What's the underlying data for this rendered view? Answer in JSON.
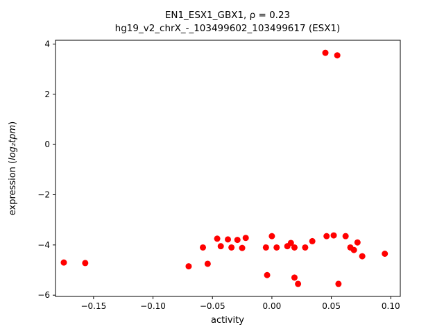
{
  "figure": {
    "background": "#ffffff",
    "axis_color": "#000000"
  },
  "chart_data": {
    "type": "scatter",
    "title": "EN1_ESX1_GBX1, ρ = 0.23",
    "subtitle": "hg19_v2_chrX_-_103499602_103499617 (ESX1)",
    "xlabel": "activity",
    "ylabel_parts": [
      "expression (",
      "log₂tpm",
      ")"
    ],
    "rho": 0.23,
    "marker_color": "#ff0000",
    "marker_shape": "circle",
    "grid": false,
    "legend": null,
    "xlim": [
      -0.182,
      0.108
    ],
    "ylim": [
      -6.05,
      4.15
    ],
    "xticks": [
      -0.15,
      -0.1,
      -0.05,
      0.0,
      0.05,
      0.1
    ],
    "xtick_labels": [
      "−0.15",
      "−0.10",
      "−0.05",
      "0.00",
      "0.05",
      "0.10"
    ],
    "yticks": [
      -6,
      -4,
      -2,
      0,
      2,
      4
    ],
    "ytick_labels": [
      "−6",
      "−4",
      "−2",
      "0",
      "2",
      "4"
    ],
    "points": [
      [
        -0.175,
        -4.7
      ],
      [
        -0.157,
        -4.72
      ],
      [
        -0.07,
        -4.85
      ],
      [
        -0.058,
        -4.1
      ],
      [
        -0.054,
        -4.75
      ],
      [
        -0.046,
        -3.75
      ],
      [
        -0.043,
        -4.05
      ],
      [
        -0.037,
        -3.78
      ],
      [
        -0.034,
        -4.1
      ],
      [
        -0.029,
        -3.8
      ],
      [
        -0.025,
        -4.12
      ],
      [
        -0.022,
        -3.72
      ],
      [
        -0.005,
        -4.1
      ],
      [
        -0.004,
        -5.2
      ],
      [
        0.0,
        -3.65
      ],
      [
        0.004,
        -4.1
      ],
      [
        0.013,
        -4.05
      ],
      [
        0.016,
        -3.92
      ],
      [
        0.019,
        -4.1
      ],
      [
        0.019,
        -5.3
      ],
      [
        0.022,
        -5.55
      ],
      [
        0.028,
        -4.1
      ],
      [
        0.034,
        -3.85
      ],
      [
        0.045,
        3.65
      ],
      [
        0.055,
        3.55
      ],
      [
        0.046,
        -3.65
      ],
      [
        0.052,
        -3.62
      ],
      [
        0.056,
        -5.55
      ],
      [
        0.062,
        -3.65
      ],
      [
        0.066,
        -4.1
      ],
      [
        0.069,
        -4.2
      ],
      [
        0.072,
        -3.9
      ],
      [
        0.076,
        -4.45
      ],
      [
        0.095,
        -4.35
      ]
    ]
  }
}
